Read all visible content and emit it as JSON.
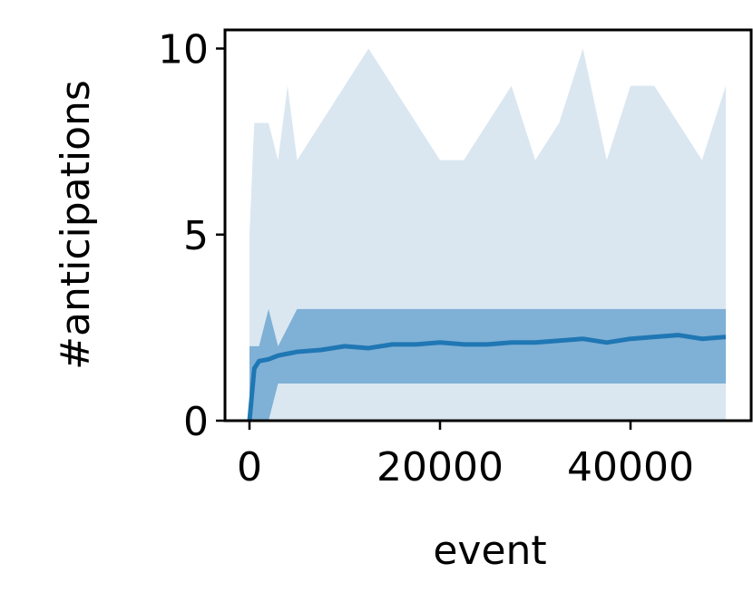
{
  "chart_data": {
    "type": "line",
    "xlabel": "event",
    "ylabel": "#anticipations",
    "x": [
      0,
      500,
      1000,
      2000,
      3000,
      4000,
      5000,
      7500,
      10000,
      12500,
      15000,
      17500,
      20000,
      22500,
      25000,
      27500,
      30000,
      32500,
      35000,
      37500,
      40000,
      42500,
      45000,
      47500,
      50000
    ],
    "bands": [
      {
        "color": "#dae7f1",
        "upper": [
          5,
          8,
          8,
          8,
          7,
          9,
          7,
          8,
          9,
          10,
          9,
          8,
          7,
          7,
          8,
          9,
          7,
          8,
          10,
          7,
          9,
          9,
          8,
          7,
          9
        ],
        "lower": [
          0,
          0,
          0,
          0,
          0,
          0,
          0,
          0,
          0,
          0,
          0,
          0,
          0,
          0,
          0,
          0,
          0,
          0,
          0,
          0,
          0,
          0,
          0,
          0,
          0
        ]
      },
      {
        "color": "#7fb0d6",
        "upper": [
          2,
          2,
          2,
          3,
          2,
          2.5,
          3,
          3,
          3,
          3,
          3,
          3,
          3,
          3,
          3,
          3,
          3,
          3,
          3,
          3,
          3,
          3,
          3,
          3,
          3
        ],
        "lower": [
          0,
          0,
          0,
          0,
          1,
          1,
          1,
          1,
          1,
          1,
          1,
          1,
          1,
          1,
          1,
          1,
          1,
          1,
          1,
          1,
          1,
          1,
          1,
          1,
          1
        ]
      }
    ],
    "series": [
      {
        "color": "#1f77b4",
        "values": [
          0,
          1.4,
          1.6,
          1.65,
          1.75,
          1.8,
          1.85,
          1.9,
          2.0,
          1.95,
          2.05,
          2.05,
          2.1,
          2.05,
          2.05,
          2.1,
          2.1,
          2.15,
          2.2,
          2.1,
          2.2,
          2.25,
          2.3,
          2.2,
          2.25
        ]
      }
    ],
    "xlim": [
      -2571,
      52667
    ],
    "ylim": [
      0,
      10.5
    ],
    "xticks": [
      0,
      20000,
      40000
    ],
    "yticks": [
      0,
      5,
      10
    ]
  }
}
